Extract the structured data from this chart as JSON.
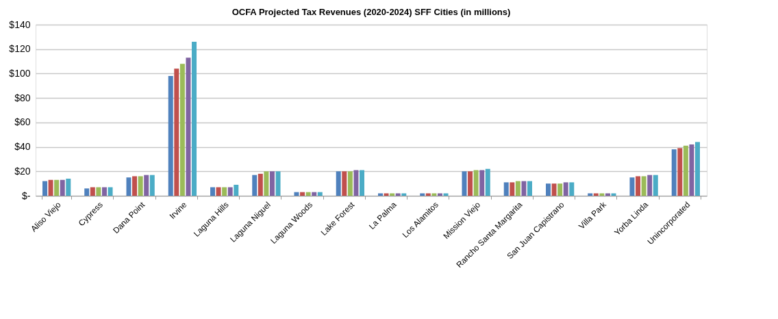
{
  "chart_data": {
    "type": "bar",
    "title": "OCFA Projected Tax Revenues (2020-2024)  SFF Cities (in millions)",
    "categories": [
      "Aliso Viejo",
      "Cypress",
      "Dana Point",
      "Irvine",
      "Laguna Hills",
      "Laguna Niguel",
      "Laguna Woods",
      "Lake Forest",
      "La Palma",
      "Los Alamitos",
      "Mission Viejo",
      "Rancho Santa Margarita",
      "San Juan Capistrano",
      "Villa Park",
      "Yorba Linda",
      "Unincorporated"
    ],
    "series": [
      {
        "color": "#4f81bd",
        "values": [
          12,
          6,
          15,
          98,
          7,
          17,
          3,
          20,
          2,
          2,
          20,
          11,
          10,
          2,
          15,
          38
        ]
      },
      {
        "color": "#c0504d",
        "values": [
          13,
          7,
          16,
          104,
          7,
          18,
          3,
          20,
          2,
          2,
          20,
          11,
          10,
          2,
          16,
          39
        ]
      },
      {
        "color": "#9bbb59",
        "values": [
          13,
          7,
          16,
          108,
          7,
          20,
          3,
          20,
          2,
          2,
          21,
          12,
          10,
          2,
          16,
          41
        ]
      },
      {
        "color": "#8064a2",
        "values": [
          13,
          7,
          17,
          113,
          7,
          20,
          3,
          21,
          2,
          2,
          21,
          12,
          11,
          2,
          17,
          42
        ]
      },
      {
        "color": "#4bacc6",
        "values": [
          14,
          7,
          17,
          126,
          9,
          20,
          3,
          21,
          2,
          2,
          22,
          12,
          11,
          2,
          17,
          44
        ]
      }
    ],
    "ylim": [
      0,
      140
    ],
    "yticks": [
      {
        "value": 0,
        "label": "$-"
      },
      {
        "value": 20,
        "label": "$20"
      },
      {
        "value": 40,
        "label": "$40"
      },
      {
        "value": 60,
        "label": "$60"
      },
      {
        "value": 80,
        "label": "$80"
      },
      {
        "value": 100,
        "label": "$100"
      },
      {
        "value": 120,
        "label": "$120"
      },
      {
        "value": 140,
        "label": "$140"
      }
    ],
    "grid": "y",
    "legend": false
  }
}
